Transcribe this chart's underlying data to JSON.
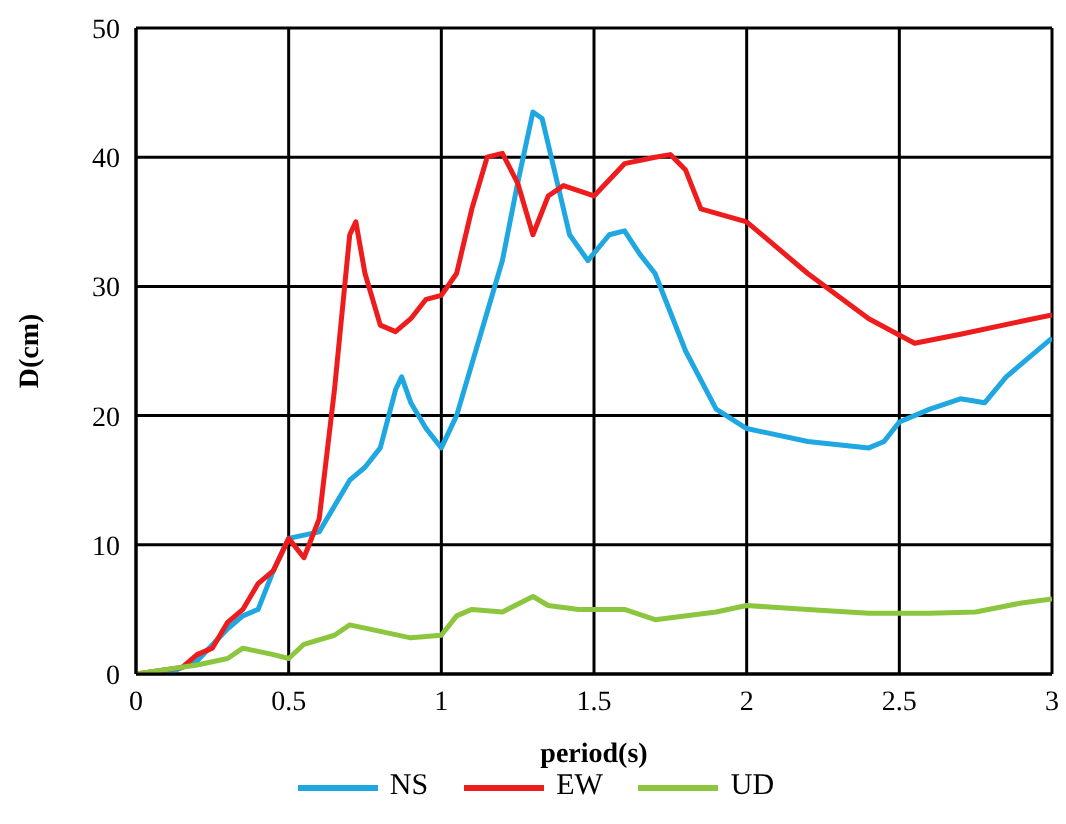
{
  "chart_data": {
    "type": "line",
    "xlabel": "period(s)",
    "ylabel": "D(cm)",
    "xlim": [
      0,
      3
    ],
    "xticks": [
      0,
      0.5,
      1,
      1.5,
      2,
      2.5,
      3
    ],
    "ylim": [
      0,
      50
    ],
    "yticks": [
      0,
      10,
      20,
      30,
      40,
      50
    ],
    "grid": true,
    "legend": "bottom",
    "marker": "none",
    "line_style": "solid",
    "series": [
      {
        "name": "NS",
        "color": "#1ea7e1",
        "x": [
          0,
          0.1,
          0.2,
          0.3,
          0.35,
          0.4,
          0.45,
          0.5,
          0.6,
          0.65,
          0.7,
          0.75,
          0.8,
          0.85,
          0.87,
          0.9,
          0.95,
          1.0,
          1.05,
          1.1,
          1.15,
          1.2,
          1.25,
          1.3,
          1.33,
          1.38,
          1.42,
          1.48,
          1.55,
          1.6,
          1.65,
          1.7,
          1.8,
          1.9,
          2.0,
          2.2,
          2.4,
          2.45,
          2.5,
          2.6,
          2.7,
          2.78,
          2.85,
          3.0
        ],
        "values": [
          0,
          0,
          1,
          3.5,
          4.5,
          5,
          8,
          10.5,
          11,
          13,
          15,
          16,
          17.5,
          22,
          23,
          21,
          19,
          17.5,
          20,
          24,
          28,
          32,
          38,
          43.5,
          43,
          38,
          34,
          32,
          34,
          34.3,
          32.5,
          31,
          25,
          20.5,
          19,
          18,
          17.5,
          18,
          19.5,
          20.5,
          21.3,
          21,
          23,
          26
        ]
      },
      {
        "name": "EW",
        "color": "#ee1c1c",
        "x": [
          0,
          0.15,
          0.2,
          0.25,
          0.3,
          0.35,
          0.4,
          0.45,
          0.5,
          0.55,
          0.6,
          0.65,
          0.7,
          0.72,
          0.75,
          0.8,
          0.85,
          0.9,
          0.95,
          1.0,
          1.05,
          1.1,
          1.15,
          1.2,
          1.25,
          1.3,
          1.35,
          1.4,
          1.5,
          1.6,
          1.7,
          1.75,
          1.8,
          1.85,
          2.0,
          2.2,
          2.4,
          2.55,
          2.7,
          2.9,
          3.0
        ],
        "values": [
          0,
          0.5,
          1.5,
          2,
          4,
          5,
          7,
          8,
          10.5,
          9,
          12,
          22,
          34,
          35,
          31,
          27,
          26.5,
          27.5,
          29,
          29.3,
          31,
          36,
          40,
          40.3,
          38,
          34,
          37,
          37.8,
          37,
          39.5,
          40,
          40.2,
          39,
          36,
          35,
          31,
          27.5,
          25.6,
          26.3,
          27.3,
          27.8
        ]
      },
      {
        "name": "UD",
        "color": "#8cc63f",
        "x": [
          0,
          0.2,
          0.3,
          0.35,
          0.45,
          0.5,
          0.55,
          0.65,
          0.7,
          0.8,
          0.9,
          1.0,
          1.05,
          1.1,
          1.2,
          1.3,
          1.35,
          1.45,
          1.6,
          1.7,
          1.9,
          2.0,
          2.2,
          2.4,
          2.6,
          2.75,
          2.9,
          3.0
        ],
        "values": [
          0,
          0.7,
          1.2,
          2,
          1.5,
          1.2,
          2.3,
          3,
          3.8,
          3.3,
          2.8,
          3,
          4.5,
          5,
          4.8,
          6,
          5.3,
          5,
          5,
          4.2,
          4.8,
          5.3,
          5,
          4.7,
          4.7,
          4.8,
          5.5,
          5.8
        ]
      }
    ]
  }
}
